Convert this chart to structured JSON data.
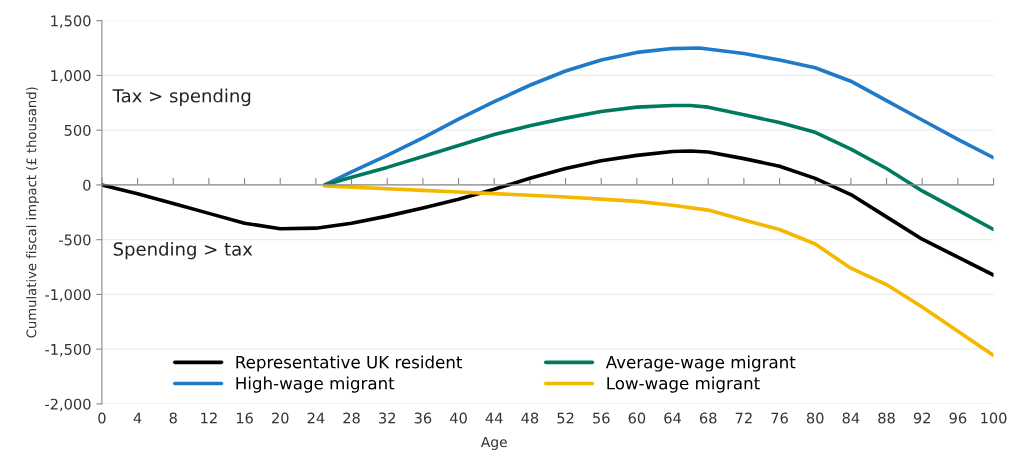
{
  "chart_data": {
    "type": "line",
    "xlabel": "Age",
    "ylabel": "Cumulative fiscal impact (£ thousand)",
    "xlim": [
      0,
      100
    ],
    "xticks": [
      0,
      4,
      8,
      12,
      16,
      20,
      24,
      28,
      32,
      36,
      40,
      44,
      48,
      52,
      56,
      60,
      64,
      68,
      72,
      76,
      80,
      84,
      88,
      92,
      96,
      100
    ],
    "ylim": [
      -2000,
      1500
    ],
    "yticks": [
      {
        "value": -2000,
        "label": "-2,000"
      },
      {
        "value": -1500,
        "label": "-1,500"
      },
      {
        "value": -1000,
        "label": "-1,000"
      },
      {
        "value": -500,
        "label": "-500"
      },
      0,
      500,
      {
        "value": 1000,
        "label": "1,000"
      },
      {
        "value": 1500,
        "label": "1,500"
      }
    ],
    "grid": "y",
    "legend": "bottom",
    "marker": "none",
    "line_style": "solid",
    "annotations": [
      "Tax > spending",
      "Spending > tax"
    ],
    "series": [
      {
        "name": "Representative UK resident",
        "color": "#000000",
        "x": [
          0,
          4,
          8,
          12,
          16,
          20,
          24,
          28,
          32,
          36,
          40,
          44,
          48,
          52,
          56,
          60,
          64,
          66,
          68,
          72,
          76,
          80,
          84,
          88,
          92,
          96,
          100
        ],
        "values": [
          0,
          -80,
          -170,
          -260,
          -350,
          -400,
          -395,
          -350,
          -285,
          -210,
          -130,
          -40,
          60,
          150,
          220,
          270,
          305,
          310,
          300,
          240,
          170,
          60,
          -88,
          -292,
          -496,
          -660,
          -823
        ]
      },
      {
        "name": "High-wage migrant",
        "color": "#1f7bc8",
        "x": [
          25,
          28,
          32,
          36,
          40,
          44,
          48,
          52,
          56,
          60,
          64,
          67,
          72,
          76,
          80,
          84,
          88,
          92,
          96,
          100
        ],
        "values": [
          0,
          120,
          270,
          430,
          600,
          760,
          910,
          1040,
          1140,
          1210,
          1245,
          1250,
          1200,
          1140,
          1070,
          947,
          770,
          593,
          416,
          248
        ]
      },
      {
        "name": "Average-wage migrant",
        "color": "#007a5e",
        "x": [
          25,
          28,
          32,
          36,
          40,
          44,
          48,
          52,
          56,
          60,
          64,
          66,
          68,
          72,
          76,
          80,
          84,
          88,
          92,
          96,
          100
        ],
        "values": [
          0,
          70,
          160,
          260,
          360,
          460,
          540,
          610,
          670,
          710,
          725,
          725,
          710,
          640,
          570,
          480,
          327,
          150,
          -55,
          -230,
          -407
        ]
      },
      {
        "name": "Low-wage migrant",
        "color": "#f5b800",
        "x": [
          25,
          28,
          32,
          36,
          40,
          44,
          48,
          52,
          56,
          60,
          64,
          68,
          72,
          76,
          80,
          84,
          88,
          92,
          96,
          100
        ],
        "values": [
          -10,
          -20,
          -35,
          -50,
          -65,
          -80,
          -95,
          -110,
          -130,
          -150,
          -186,
          -230,
          -320,
          -407,
          -540,
          -760,
          -910,
          -1115,
          -1336,
          -1557
        ]
      }
    ]
  }
}
